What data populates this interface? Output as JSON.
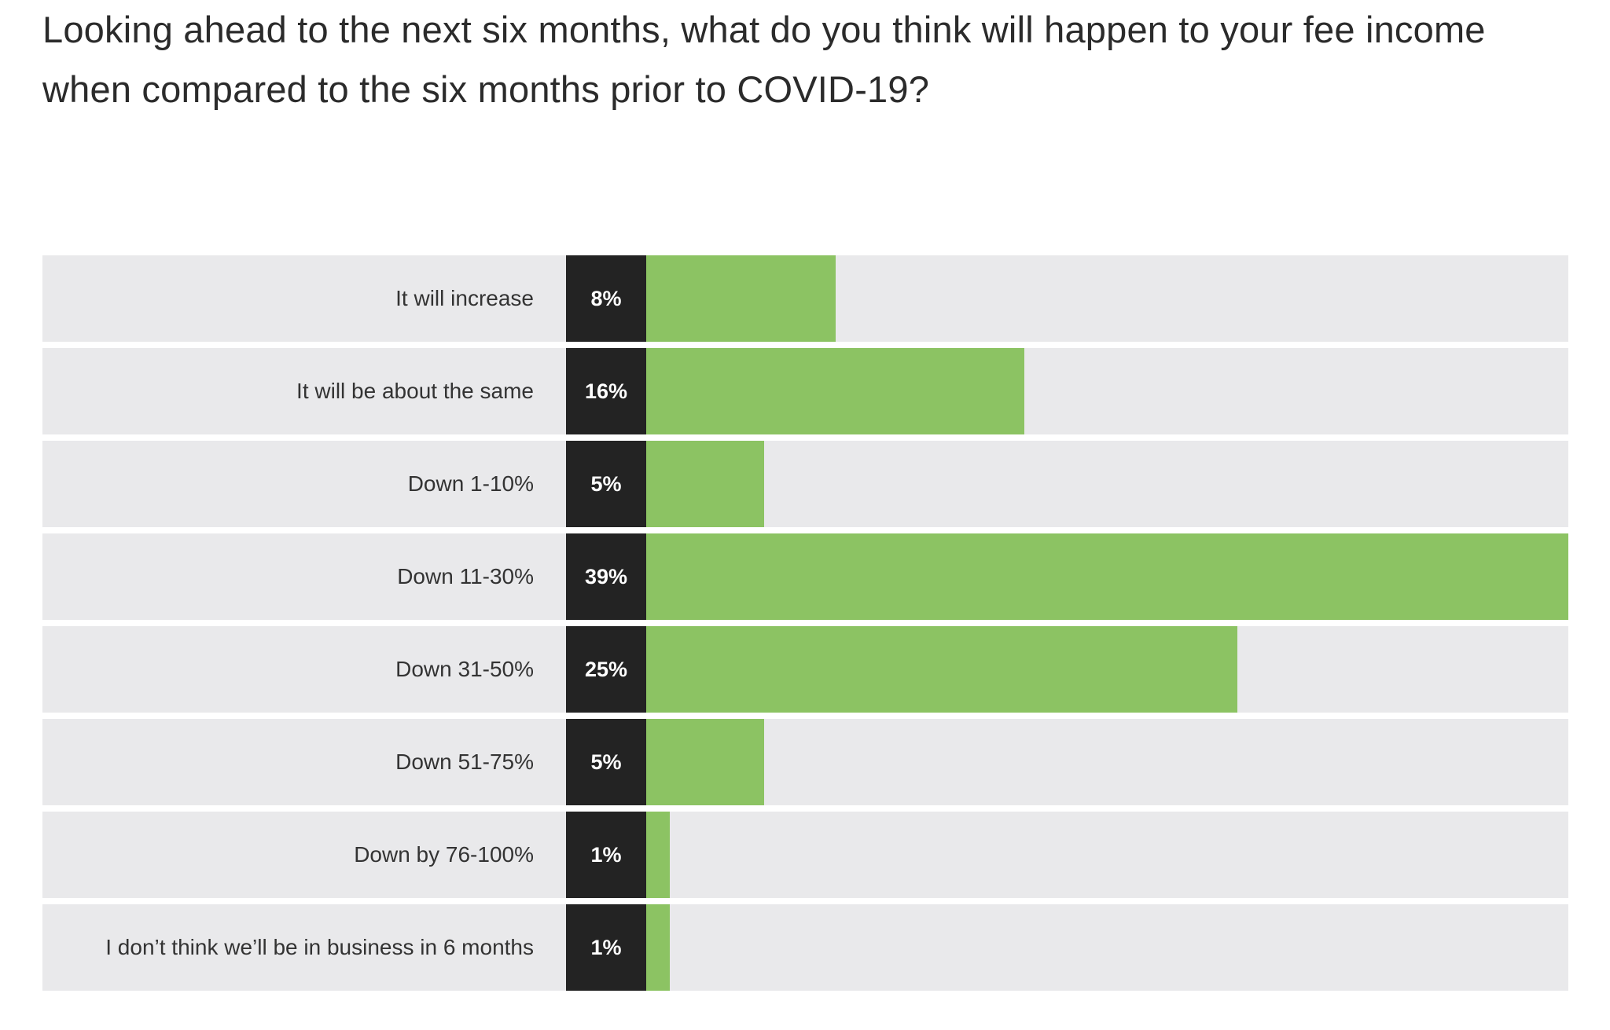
{
  "question": "Looking ahead to the next six months, what do you think will happen to your fee income when compared to the six months prior to COVID-19?",
  "colors": {
    "bar": "#8cc363",
    "value_box": "#232323",
    "row_background": "#e9e9eb"
  },
  "chart_data": {
    "type": "bar",
    "orientation": "horizontal",
    "title": "Looking ahead to the next six months, what do you think will happen to your fee income when compared to the six months prior to COVID-19?",
    "unit": "%",
    "max_value": 39,
    "categories": [
      "It will increase",
      "It will be about the same",
      "Down 1-10%",
      "Down 11-30%",
      "Down 31-50%",
      "Down 51-75%",
      "Down by 76-100%",
      "I don’t think we’ll be in business in 6 months"
    ],
    "values": [
      8,
      16,
      5,
      39,
      25,
      5,
      1,
      1
    ],
    "value_labels": [
      "8%",
      "16%",
      "5%",
      "39%",
      "25%",
      "5%",
      "1%",
      "1%"
    ]
  }
}
